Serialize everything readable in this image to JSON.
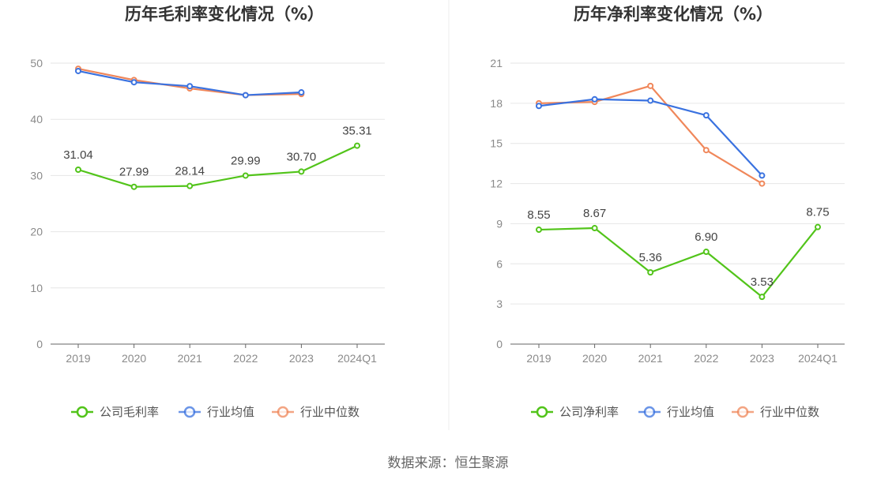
{
  "source": "数据来源：恒生聚源",
  "colors": {
    "company": "#52c41a",
    "avg": "#3a72e0",
    "median": "#f0875a"
  },
  "chart_data": [
    {
      "type": "line",
      "title": "历年毛利率变化情况（%）",
      "categories": [
        "2019",
        "2020",
        "2021",
        "2022",
        "2023",
        "2024Q1"
      ],
      "ylim": [
        0,
        50
      ],
      "yticks": [
        0,
        10,
        20,
        30,
        40,
        50
      ],
      "grid": true,
      "legend_position": "bottom",
      "series": [
        {
          "name": "公司毛利率",
          "key": "company",
          "values": [
            31.04,
            27.99,
            28.14,
            29.99,
            30.7,
            35.31
          ],
          "labels": [
            "31.04",
            "27.99",
            "28.14",
            "29.99",
            "30.70",
            "35.31"
          ]
        },
        {
          "name": "行业均值",
          "key": "avg",
          "values": [
            48.6,
            46.6,
            45.9,
            44.3,
            44.8,
            null
          ]
        },
        {
          "name": "行业中位数",
          "key": "median",
          "values": [
            49.0,
            47.0,
            45.5,
            44.3,
            44.5,
            null
          ]
        }
      ]
    },
    {
      "type": "line",
      "title": "历年净利率变化情况（%）",
      "categories": [
        "2019",
        "2020",
        "2021",
        "2022",
        "2023",
        "2024Q1"
      ],
      "ylim": [
        0,
        21
      ],
      "yticks": [
        0,
        3,
        6,
        9,
        12,
        15,
        18,
        21
      ],
      "grid": true,
      "legend_position": "bottom",
      "series": [
        {
          "name": "公司净利率",
          "key": "company",
          "values": [
            8.55,
            8.67,
            5.36,
            6.9,
            3.53,
            8.75
          ],
          "labels": [
            "8.55",
            "8.67",
            "5.36",
            "6.90",
            "3.53",
            "8.75"
          ]
        },
        {
          "name": "行业均值",
          "key": "avg",
          "values": [
            17.8,
            18.3,
            18.2,
            17.1,
            12.6,
            null
          ]
        },
        {
          "name": "行业中位数",
          "key": "median",
          "values": [
            18.0,
            18.1,
            19.3,
            14.5,
            12.0,
            null
          ]
        }
      ]
    }
  ]
}
